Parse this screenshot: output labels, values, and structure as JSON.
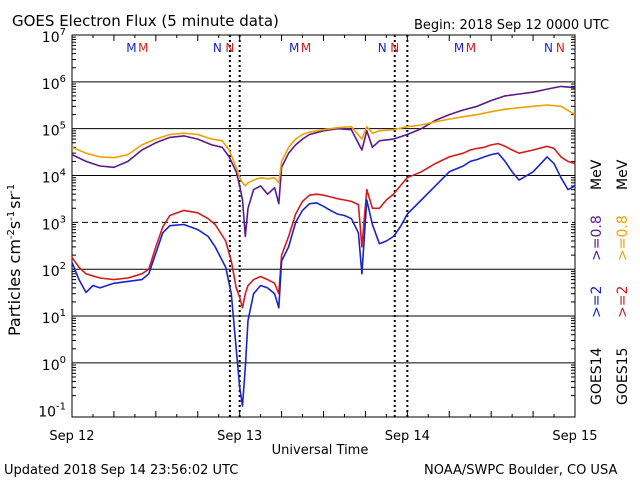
{
  "chart_data": {
    "type": "line",
    "title": "GOES Electron Flux (5 minute data)",
    "begin_label": "Begin: 2018 Sep 12 0000 UTC",
    "xlabel": "Universal Time",
    "ylabel_main": "Particles cm",
    "ylabel_exp1": "-2",
    "ylabel_mid1": "s",
    "ylabel_exp2": "-1",
    "ylabel_mid2": "sr",
    "ylabel_exp3": "-1",
    "x_ticks": [
      "Sep 12",
      "Sep 13",
      "Sep 14",
      "Sep 15"
    ],
    "xlim_hours": [
      0,
      72
    ],
    "y_ticks": [
      {
        "base": "10",
        "exp": "7",
        "value": 10000000
      },
      {
        "base": "10",
        "exp": "6",
        "value": 1000000
      },
      {
        "base": "10",
        "exp": "5",
        "value": 100000
      },
      {
        "base": "10",
        "exp": "4",
        "value": 10000
      },
      {
        "base": "10",
        "exp": "3",
        "value": 1000
      },
      {
        "base": "10",
        "exp": "2",
        "value": 100
      },
      {
        "base": "10",
        "exp": "1",
        "value": 10
      },
      {
        "base": "10",
        "exp": "0",
        "value": 1
      },
      {
        "base": "10",
        "exp": "-1",
        "value": 0.1
      }
    ],
    "ylim": [
      0.07,
      10000000
    ],
    "y_scale": "log",
    "threshold_line": 1000,
    "grid_decades": [
      10,
      1,
      10000,
      100000,
      1000000,
      100
    ],
    "markers": [
      {
        "hour": 8.5,
        "label": "M",
        "color": "#1a24c8"
      },
      {
        "hour": 10.2,
        "label": "M",
        "color": "#d41c1c"
      },
      {
        "hour": 20.8,
        "label": "N",
        "color": "#1a24c8"
      },
      {
        "hour": 22.6,
        "label": "N",
        "color": "#d41c1c"
      },
      {
        "hour": 31.8,
        "label": "M",
        "color": "#1a24c8"
      },
      {
        "hour": 33.5,
        "label": "M",
        "color": "#d41c1c"
      },
      {
        "hour": 44.4,
        "label": "N",
        "color": "#1a24c8"
      },
      {
        "hour": 46.2,
        "label": "N",
        "color": "#d41c1c"
      },
      {
        "hour": 55.4,
        "label": "M",
        "color": "#1a24c8"
      },
      {
        "hour": 57.1,
        "label": "M",
        "color": "#d41c1c"
      },
      {
        "hour": 68.2,
        "label": "N",
        "color": "#1a24c8"
      },
      {
        "hour": 69.9,
        "label": "N",
        "color": "#d41c1c"
      }
    ],
    "dotted_hours": [
      22.6,
      46.2
    ],
    "series": [
      {
        "name": ">=2 MeV",
        "satellite": "GOES14",
        "color": "#1a24c8",
        "points": [
          [
            0,
            140
          ],
          [
            1,
            60
          ],
          [
            2,
            32
          ],
          [
            3,
            45
          ],
          [
            4,
            40
          ],
          [
            6,
            50
          ],
          [
            8,
            55
          ],
          [
            10,
            60
          ],
          [
            11,
            80
          ],
          [
            12,
            220
          ],
          [
            13,
            600
          ],
          [
            14,
            850
          ],
          [
            16,
            900
          ],
          [
            18,
            700
          ],
          [
            19.5,
            500
          ],
          [
            20.5,
            300
          ],
          [
            22,
            110
          ],
          [
            22.8,
            30
          ],
          [
            23.5,
            2
          ],
          [
            24,
            0.3
          ],
          [
            24.4,
            0.12
          ],
          [
            24.8,
            0.8
          ],
          [
            25.2,
            8
          ],
          [
            26,
            30
          ],
          [
            27,
            45
          ],
          [
            28,
            40
          ],
          [
            29,
            30
          ],
          [
            29.6,
            15
          ],
          [
            30,
            150
          ],
          [
            31,
            300
          ],
          [
            32,
            1000
          ],
          [
            33,
            1800
          ],
          [
            34,
            2500
          ],
          [
            35,
            2600
          ],
          [
            36,
            2200
          ],
          [
            37,
            1800
          ],
          [
            38,
            1500
          ],
          [
            39,
            1400
          ],
          [
            40,
            1200
          ],
          [
            41,
            600
          ],
          [
            41.5,
            80
          ],
          [
            42.2,
            3000
          ],
          [
            43,
            900
          ],
          [
            44,
            350
          ],
          [
            45,
            400
          ],
          [
            46,
            500
          ],
          [
            47,
            800
          ],
          [
            48,
            1500
          ],
          [
            50,
            3000
          ],
          [
            52,
            6000
          ],
          [
            54,
            12000
          ],
          [
            56,
            16000
          ],
          [
            57,
            20000
          ],
          [
            58,
            22000
          ],
          [
            59,
            25000
          ],
          [
            60,
            28000
          ],
          [
            61,
            30000
          ],
          [
            62,
            20000
          ],
          [
            63,
            12000
          ],
          [
            64,
            8000
          ],
          [
            66,
            12000
          ],
          [
            68,
            25000
          ],
          [
            69,
            18000
          ],
          [
            70,
            9000
          ],
          [
            71,
            5000
          ],
          [
            72,
            6000
          ]
        ]
      },
      {
        "name": ">=0.8 MeV",
        "satellite": "GOES14",
        "color": "#5a1a8e",
        "points": [
          [
            0,
            28000
          ],
          [
            2,
            20000
          ],
          [
            4,
            16000
          ],
          [
            6,
            15000
          ],
          [
            8,
            20000
          ],
          [
            10,
            35000
          ],
          [
            12,
            50000
          ],
          [
            14,
            65000
          ],
          [
            16,
            70000
          ],
          [
            18,
            60000
          ],
          [
            20,
            45000
          ],
          [
            21.5,
            40000
          ],
          [
            22.5,
            25000
          ],
          [
            23.5,
            12000
          ],
          [
            24,
            6000
          ],
          [
            24.4,
            3000
          ],
          [
            24.8,
            500
          ],
          [
            25.2,
            2000
          ],
          [
            26,
            5000
          ],
          [
            27,
            6000
          ],
          [
            28,
            4000
          ],
          [
            29,
            5500
          ],
          [
            29.6,
            2500
          ],
          [
            30,
            15000
          ],
          [
            31,
            30000
          ],
          [
            32,
            45000
          ],
          [
            33,
            60000
          ],
          [
            34,
            75000
          ],
          [
            36,
            90000
          ],
          [
            38,
            100000
          ],
          [
            40,
            95000
          ],
          [
            41.5,
            35000
          ],
          [
            42.2,
            90000
          ],
          [
            43,
            40000
          ],
          [
            44,
            55000
          ],
          [
            46,
            60000
          ],
          [
            48,
            75000
          ],
          [
            50,
            100000
          ],
          [
            52,
            150000
          ],
          [
            54,
            200000
          ],
          [
            56,
            250000
          ],
          [
            58,
            300000
          ],
          [
            60,
            400000
          ],
          [
            62,
            500000
          ],
          [
            64,
            550000
          ],
          [
            66,
            600000
          ],
          [
            68,
            700000
          ],
          [
            70,
            800000
          ],
          [
            72,
            750000
          ]
        ]
      },
      {
        "name": ">=2 MeV",
        "satellite": "GOES15",
        "color": "#d41c1c",
        "points": [
          [
            0,
            180
          ],
          [
            1,
            110
          ],
          [
            2,
            80
          ],
          [
            4,
            65
          ],
          [
            6,
            60
          ],
          [
            8,
            65
          ],
          [
            10,
            80
          ],
          [
            11,
            100
          ],
          [
            12,
            300
          ],
          [
            13,
            800
          ],
          [
            14,
            1400
          ],
          [
            16,
            1800
          ],
          [
            18,
            1600
          ],
          [
            19.5,
            1200
          ],
          [
            20.5,
            900
          ],
          [
            22,
            400
          ],
          [
            22.8,
            150
          ],
          [
            23.5,
            40
          ],
          [
            24,
            25
          ],
          [
            24.4,
            15
          ],
          [
            24.8,
            30
          ],
          [
            25.2,
            45
          ],
          [
            26,
            60
          ],
          [
            27,
            70
          ],
          [
            28,
            60
          ],
          [
            29,
            50
          ],
          [
            29.6,
            30
          ],
          [
            30,
            200
          ],
          [
            31,
            500
          ],
          [
            32,
            1500
          ],
          [
            33,
            2800
          ],
          [
            34,
            3800
          ],
          [
            35,
            4000
          ],
          [
            36,
            3800
          ],
          [
            37,
            3500
          ],
          [
            38,
            3200
          ],
          [
            39,
            3000
          ],
          [
            40,
            2800
          ],
          [
            41,
            2400
          ],
          [
            41.5,
            300
          ],
          [
            42.2,
            5000
          ],
          [
            43,
            2000
          ],
          [
            44,
            2000
          ],
          [
            45,
            3000
          ],
          [
            46,
            4000
          ],
          [
            47,
            6000
          ],
          [
            48,
            9000
          ],
          [
            50,
            12000
          ],
          [
            52,
            18000
          ],
          [
            54,
            25000
          ],
          [
            56,
            30000
          ],
          [
            57,
            35000
          ],
          [
            58,
            38000
          ],
          [
            59,
            40000
          ],
          [
            60,
            45000
          ],
          [
            61,
            48000
          ],
          [
            62,
            42000
          ],
          [
            63,
            35000
          ],
          [
            64,
            30000
          ],
          [
            66,
            35000
          ],
          [
            68,
            42000
          ],
          [
            69,
            38000
          ],
          [
            70,
            25000
          ],
          [
            71,
            20000
          ],
          [
            72,
            18000
          ]
        ]
      },
      {
        "name": ">=0.8 MeV",
        "satellite": "GOES15",
        "color": "#f0a000",
        "points": [
          [
            0,
            40000
          ],
          [
            2,
            30000
          ],
          [
            4,
            25000
          ],
          [
            6,
            24000
          ],
          [
            8,
            28000
          ],
          [
            10,
            45000
          ],
          [
            12,
            60000
          ],
          [
            14,
            75000
          ],
          [
            16,
            80000
          ],
          [
            18,
            75000
          ],
          [
            20,
            60000
          ],
          [
            21.5,
            55000
          ],
          [
            22.5,
            35000
          ],
          [
            23.5,
            15000
          ],
          [
            24,
            9000
          ],
          [
            24.4,
            7000
          ],
          [
            24.8,
            6000
          ],
          [
            25.2,
            7000
          ],
          [
            26,
            8000
          ],
          [
            27,
            9000
          ],
          [
            28,
            8500
          ],
          [
            29,
            9000
          ],
          [
            29.6,
            7000
          ],
          [
            30,
            20000
          ],
          [
            31,
            40000
          ],
          [
            32,
            60000
          ],
          [
            33,
            75000
          ],
          [
            34,
            85000
          ],
          [
            36,
            95000
          ],
          [
            38,
            105000
          ],
          [
            40,
            110000
          ],
          [
            41.5,
            60000
          ],
          [
            42.2,
            110000
          ],
          [
            43,
            80000
          ],
          [
            44,
            90000
          ],
          [
            46,
            95000
          ],
          [
            48,
            110000
          ],
          [
            50,
            120000
          ],
          [
            52,
            140000
          ],
          [
            54,
            160000
          ],
          [
            56,
            180000
          ],
          [
            58,
            200000
          ],
          [
            60,
            230000
          ],
          [
            62,
            260000
          ],
          [
            64,
            280000
          ],
          [
            66,
            300000
          ],
          [
            68,
            320000
          ],
          [
            70,
            300000
          ],
          [
            72,
            200000
          ]
        ]
      }
    ],
    "legend": {
      "goes14_label": "GOES14",
      "goes15_label": "GOES15",
      "g14_ge2": ">=2",
      "g14_ge08": ">=0.8",
      "g15_ge2": ">=2",
      "g15_ge08": ">=0.8",
      "unit": "MeV"
    }
  },
  "footer": {
    "updated": "Updated 2018 Sep 14 23:56:02 UTC",
    "credit": "NOAA/SWPC Boulder, CO USA"
  }
}
